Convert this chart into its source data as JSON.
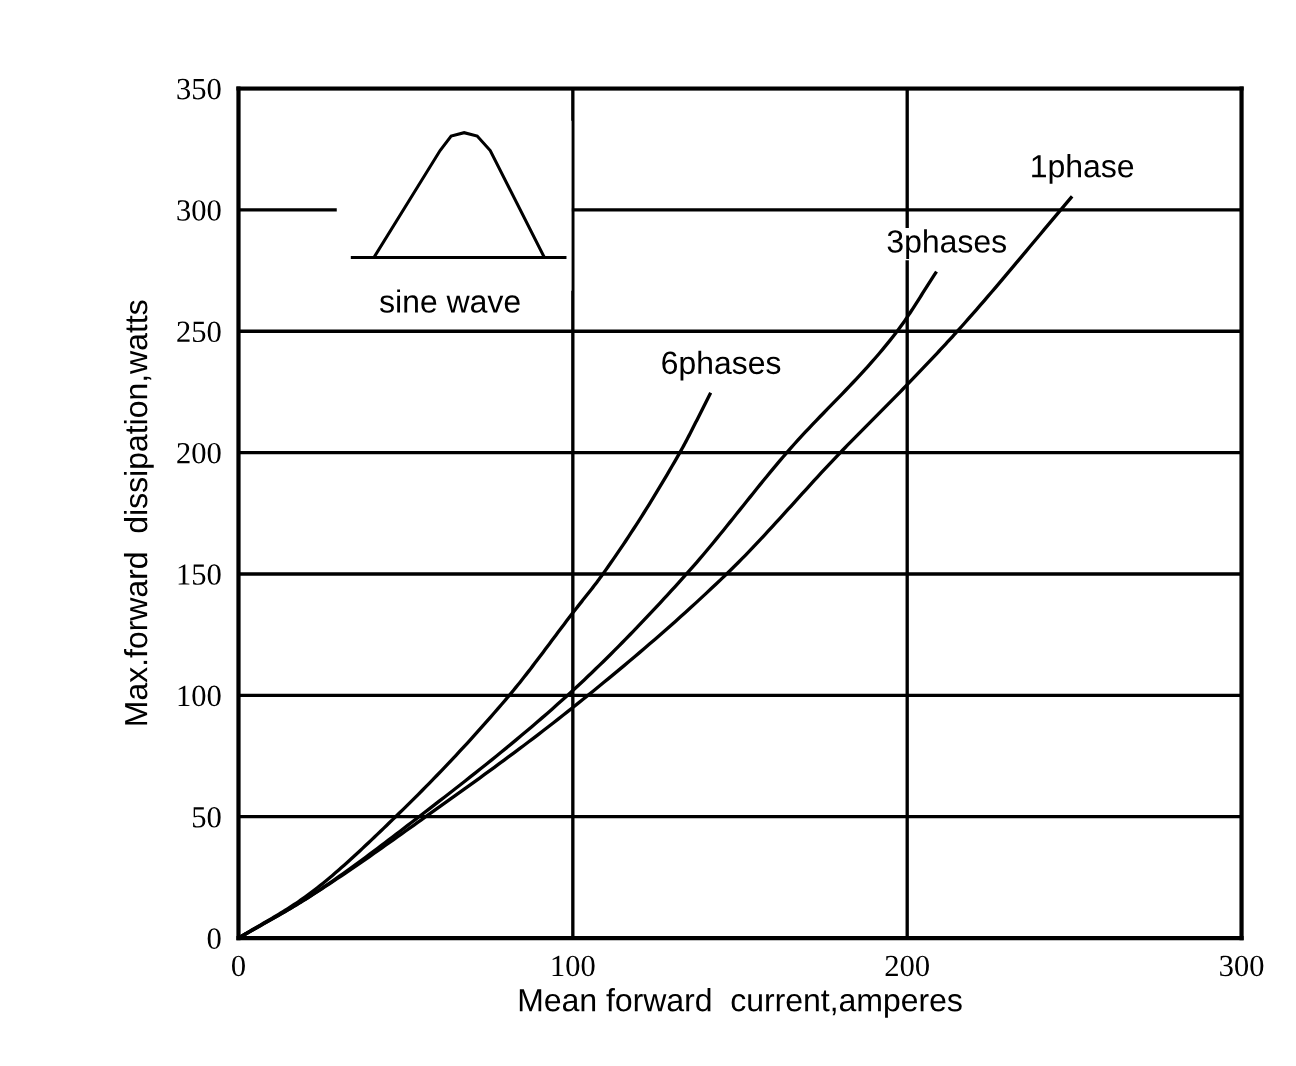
{
  "chart_data": {
    "type": "line",
    "xlabel": "Mean forward  current,amperes",
    "ylabel": "Max.forward  dissipation,watts",
    "xlim": [
      0,
      300
    ],
    "ylim": [
      0,
      350
    ],
    "xticks": [
      0,
      100,
      200,
      300
    ],
    "yticks": [
      0,
      50,
      100,
      150,
      200,
      250,
      300,
      350
    ],
    "grid": true,
    "marker": "none",
    "line_style": "solid",
    "series": [
      {
        "name": "6phases",
        "color": "#000000",
        "x": [
          0,
          20,
          47,
          81,
          100,
          109,
          132,
          141
        ],
        "values": [
          0,
          17,
          50,
          100,
          134,
          150,
          200,
          224
        ]
      },
      {
        "name": "3phases",
        "color": "#000000",
        "x": [
          0,
          20,
          54,
          100,
          134,
          164,
          197,
          208.5
        ],
        "values": [
          0,
          16,
          50,
          102,
          150,
          200,
          250,
          274
        ]
      },
      {
        "name": "1phase",
        "color": "#000000",
        "x": [
          0,
          20,
          56,
          100,
          146,
          180,
          200,
          215,
          249
        ],
        "values": [
          0,
          16,
          50,
          95,
          150,
          200,
          228,
          250,
          305
        ]
      }
    ],
    "annotations": [
      "sine wave"
    ]
  }
}
